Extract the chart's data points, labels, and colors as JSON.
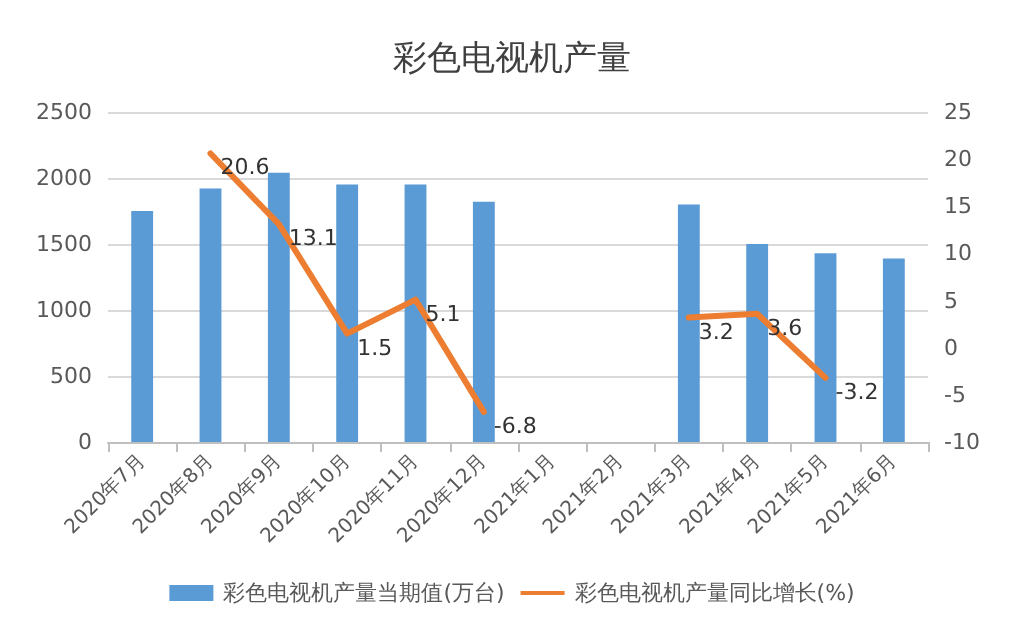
{
  "chart_data": {
    "type": "bar",
    "title": "彩色电视机产量",
    "categories": [
      "2020年7月",
      "2020年8月",
      "2020年9月",
      "2020年10月",
      "2020年11月",
      "2020年12月",
      "2021年1月",
      "2021年2月",
      "2021年3月",
      "2021年4月",
      "2021年5月",
      "2021年6月"
    ],
    "series": [
      {
        "name": "彩色电视机产量当期值(万台)",
        "color": "#5b9bd5",
        "values": [
          1750,
          1920,
          2040,
          1950,
          1950,
          1820,
          null,
          null,
          1800,
          1500,
          1430,
          1390
        ]
      },
      {
        "name": "彩色电视机产量同比增长(%)",
        "type": "line",
        "axis": "y2",
        "color": "#ed7d31",
        "data_labels": true,
        "values": [
          null,
          20.6,
          13.1,
          1.5,
          5.1,
          -6.8,
          null,
          null,
          3.2,
          3.6,
          -3.2,
          null
        ]
      }
    ],
    "ylim": [
      0,
      2500
    ],
    "yticks": [
      0,
      500,
      1000,
      1500,
      2000,
      2500
    ],
    "y2lim": [
      -10,
      25
    ],
    "y2ticks": [
      -10,
      -5,
      0,
      5,
      10,
      15,
      20,
      25
    ],
    "grid": "y",
    "legend": "bottom",
    "marker": "none"
  }
}
